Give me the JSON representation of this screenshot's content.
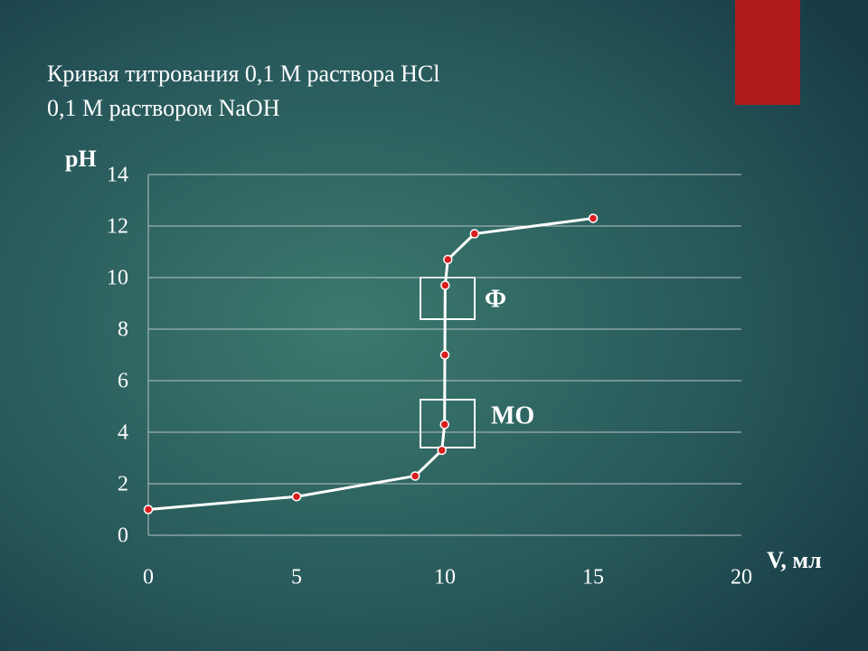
{
  "chart_data": {
    "type": "line",
    "title": [
      "Кривая титрования 0,1 М раствора HCl",
      "0,1 М раствором NaOH"
    ],
    "y_label": "pH",
    "x_label": "V, мл",
    "x": [
      0,
      5,
      9,
      9.9,
      9.99,
      10,
      10.01,
      10.1,
      11,
      15
    ],
    "series": [
      {
        "name": null,
        "color": "#ffffff",
        "marker_color": "#d81e1e",
        "values": [
          1.0,
          1.5,
          2.3,
          3.3,
          4.3,
          7.0,
          9.7,
          10.7,
          11.7,
          12.3
        ]
      }
    ],
    "xlim": [
      0,
      20
    ],
    "xticks": [
      0,
      5,
      10,
      15,
      20
    ],
    "ylim": [
      0,
      14
    ],
    "yticks": [
      0,
      2,
      4,
      6,
      8,
      10,
      12,
      14
    ],
    "grid": true,
    "annotations": [
      "Ф",
      "МО"
    ]
  }
}
